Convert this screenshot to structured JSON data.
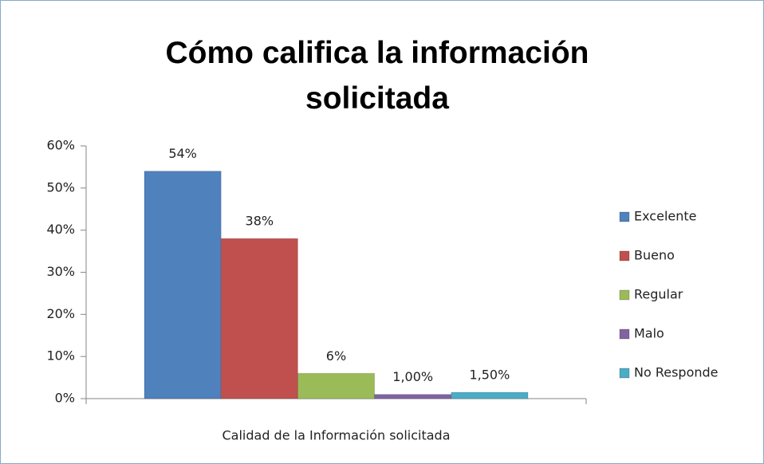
{
  "chart_data": {
    "type": "bar",
    "title": "Cómo califica la información solicitada",
    "categories": [
      "Calidad de la Información solicitada"
    ],
    "series": [
      {
        "name": "Excelente",
        "color": "#4f81bd",
        "values": [
          54
        ],
        "value_labels": [
          "54%"
        ]
      },
      {
        "name": "Bueno",
        "color": "#c0504d",
        "values": [
          38
        ],
        "value_labels": [
          "38%"
        ]
      },
      {
        "name": "Regular",
        "color": "#9bbb59",
        "values": [
          6
        ],
        "value_labels": [
          "6%"
        ]
      },
      {
        "name": "Malo",
        "color": "#8064a2",
        "values": [
          1
        ],
        "value_labels": [
          "1,00%"
        ]
      },
      {
        "name": "No Responde",
        "color": "#4bacc6",
        "values": [
          1.5
        ],
        "value_labels": [
          "1,50%"
        ]
      }
    ],
    "ylim": [
      0,
      60
    ],
    "yticks": [
      {
        "value": 0,
        "label": "0%"
      },
      {
        "value": 10,
        "label": "10%"
      },
      {
        "value": 20,
        "label": "20%"
      },
      {
        "value": 30,
        "label": "30%"
      },
      {
        "value": 40,
        "label": "40%"
      },
      {
        "value": 50,
        "label": "50%"
      },
      {
        "value": 60,
        "label": "60%"
      }
    ],
    "grid": false,
    "legend_position": "right"
  }
}
